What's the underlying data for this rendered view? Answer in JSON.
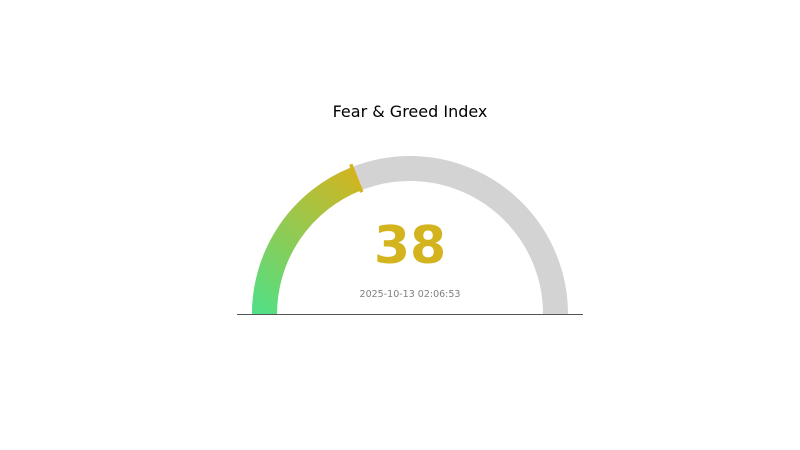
{
  "chart_data": {
    "type": "gauge",
    "title": "Fear & Greed Index",
    "value": 38,
    "range": [
      0,
      100
    ],
    "value_label": "38",
    "timestamp": "2025-10-13 02:06:53",
    "colors": {
      "start": "#4fe087",
      "end": "#d4b41e",
      "track": "#d3d3d3",
      "value_text": "#d4b41e",
      "marker": "#d4b41e",
      "baseline": "#555555",
      "timestamp_text": "#808080"
    }
  }
}
